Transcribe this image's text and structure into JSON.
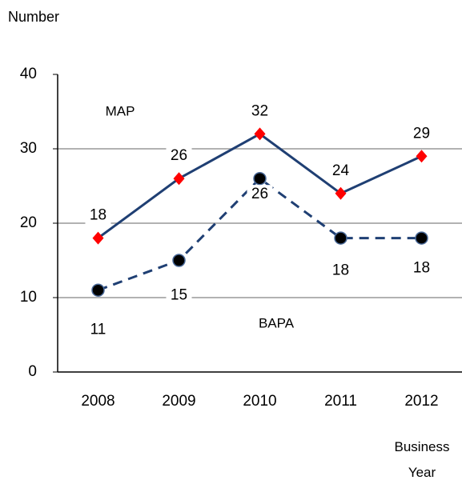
{
  "chart_data": {
    "type": "line",
    "y_label": "Number",
    "x_label": "Business Year",
    "categories": [
      "2008",
      "2009",
      "2010",
      "2011",
      "2012"
    ],
    "series": [
      {
        "name": "MAP",
        "color": "#1f3f73",
        "marker_color": "#ff0000",
        "marker": "diamond",
        "dashed": false,
        "values": [
          18,
          26,
          32,
          24,
          29
        ]
      },
      {
        "name": "BAPA",
        "color": "#1f3f73",
        "marker_color": "#000000",
        "marker": "circle",
        "dashed": true,
        "values": [
          11,
          15,
          26,
          18,
          18
        ]
      }
    ],
    "ylim": [
      0,
      40
    ],
    "yticks": [
      0,
      10,
      20,
      30,
      40
    ],
    "grid": true
  }
}
